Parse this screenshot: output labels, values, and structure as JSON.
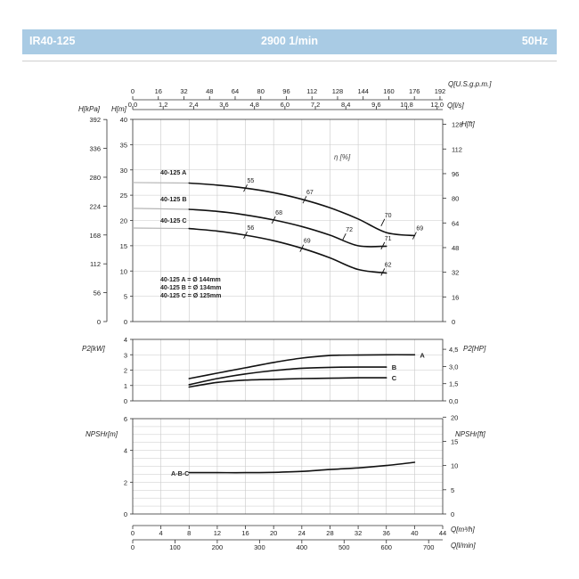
{
  "header": {
    "model": "IR40-125",
    "speed": "2900 1/min",
    "frequency": "50Hz",
    "background_color": "#a9cbe4"
  },
  "chart_data": [
    {
      "type": "line",
      "id": "head",
      "axes": {
        "x_top_gpm": {
          "label": "Q[U.S.g.p.m.]",
          "ticks": [
            "0",
            "16",
            "32",
            "48",
            "64",
            "80",
            "96",
            "112",
            "128",
            "144",
            "160",
            "176",
            "192"
          ]
        },
        "x_top_ls": {
          "label": "Q[l/s]",
          "ticks": [
            "0,0",
            "1,2",
            "2,4",
            "3,6",
            "4,8",
            "6,0",
            "7,2",
            "8,4",
            "9,6",
            "10,8",
            "12,0"
          ]
        },
        "y_left_kpa": {
          "label": "H[kPa]",
          "ticks": [
            "0",
            "56",
            "112",
            "168",
            "224",
            "280",
            "336",
            "392"
          ]
        },
        "y_left_m": {
          "label": "H[m]",
          "ticks": [
            "0",
            "5",
            "10",
            "15",
            "20",
            "25",
            "30",
            "35",
            "40"
          ]
        },
        "y_right_ft": {
          "label": "H[ft]",
          "ticks": [
            "0",
            "16",
            "32",
            "48",
            "64",
            "80",
            "96",
            "112",
            "128"
          ]
        }
      },
      "eta_label": "η [%]",
      "xlim_m3h": [
        0,
        44
      ],
      "ylim_m": [
        0,
        40
      ],
      "grid": true,
      "series": [
        {
          "name": "40-125 A",
          "x": [
            0,
            8,
            12,
            16,
            20,
            24,
            28,
            32,
            36,
            40
          ],
          "y": [
            27.5,
            27.4,
            27.0,
            26.4,
            25.5,
            24.2,
            22.5,
            20.3,
            17.6,
            17.0
          ],
          "flat_from": 0
        },
        {
          "name": "40-125 B",
          "x": [
            0,
            8,
            12,
            16,
            20,
            24,
            28,
            32,
            36
          ],
          "y": [
            22.4,
            22.2,
            21.8,
            21.1,
            20.1,
            18.8,
            17.1,
            15.0,
            14.9
          ],
          "flat_from": 0
        },
        {
          "name": "40-125 C",
          "x": [
            0,
            8,
            12,
            16,
            20,
            24,
            28,
            32,
            36
          ],
          "y": [
            18.5,
            18.4,
            17.9,
            17.1,
            16.0,
            14.5,
            12.6,
            10.3,
            9.6
          ],
          "flat_from": 0
        }
      ],
      "efficiency_marks": [
        {
          "series": "40-125 A",
          "x": 16,
          "y": 26.4,
          "label": "55"
        },
        {
          "series": "40-125 A",
          "x": 24.4,
          "y": 24.1,
          "label": "67"
        },
        {
          "series": "40-125 A",
          "x": 35.5,
          "y": 19.6,
          "label": "70"
        },
        {
          "series": "40-125 A",
          "x": 40.0,
          "y": 17.0,
          "label": "69"
        },
        {
          "series": "40-125 B",
          "x": 20.0,
          "y": 20.1,
          "label": "68"
        },
        {
          "series": "40-125 B",
          "x": 30.0,
          "y": 16.7,
          "label": "72"
        },
        {
          "series": "40-125 B",
          "x": 35.5,
          "y": 15.0,
          "label": "71"
        },
        {
          "series": "40-125 C",
          "x": 16.0,
          "y": 17.1,
          "label": "56"
        },
        {
          "series": "40-125 C",
          "x": 24.0,
          "y": 14.5,
          "label": "69"
        },
        {
          "series": "40-125 C",
          "x": 35.5,
          "y": 9.8,
          "label": "62"
        }
      ],
      "impeller_notes": [
        "40-125 A = Ø 144mm",
        "40-125 B = Ø 134mm",
        "40-125 C = Ø 125mm"
      ]
    },
    {
      "type": "line",
      "id": "power",
      "axes": {
        "y_left": {
          "label": "P2[kW]",
          "ticks": [
            "0",
            "1",
            "2",
            "3",
            "4"
          ]
        },
        "y_right": {
          "label": "P2[HP]",
          "ticks": [
            "0,0",
            "1,5",
            "3,0",
            "4,5"
          ]
        }
      },
      "ylim_kw": [
        0,
        4
      ],
      "series": [
        {
          "name": "A",
          "x": [
            8,
            12,
            16,
            20,
            24,
            28,
            32,
            36,
            40
          ],
          "y": [
            1.45,
            1.8,
            2.15,
            2.5,
            2.78,
            2.95,
            2.98,
            3.0,
            3.0
          ]
        },
        {
          "name": "B",
          "x": [
            8,
            12,
            16,
            20,
            24,
            28,
            32,
            36
          ],
          "y": [
            1.05,
            1.45,
            1.75,
            1.97,
            2.12,
            2.18,
            2.2,
            2.2
          ]
        },
        {
          "name": "C",
          "x": [
            8,
            12,
            16,
            20,
            24,
            28,
            32,
            36
          ],
          "y": [
            0.9,
            1.2,
            1.35,
            1.4,
            1.45,
            1.47,
            1.5,
            1.5
          ]
        }
      ]
    },
    {
      "type": "line",
      "id": "npsh",
      "axes": {
        "y_left": {
          "label": "NPSHr[m]",
          "ticks": [
            "0",
            "2",
            "4",
            "6"
          ]
        },
        "y_right": {
          "label": "NPSHr[ft]",
          "ticks": [
            "0",
            "5",
            "10",
            "15",
            "20"
          ]
        },
        "x_bottom_m3h": {
          "label": "Q[m³/h]",
          "ticks": [
            "0",
            "4",
            "8",
            "12",
            "16",
            "20",
            "24",
            "28",
            "32",
            "36",
            "40",
            "44"
          ]
        },
        "x_bottom_lmin": {
          "label": "Q[l/min]",
          "ticks": [
            "0",
            "100",
            "200",
            "300",
            "400",
            "500",
            "600",
            "700"
          ]
        }
      },
      "ylim_m": [
        0,
        6
      ],
      "series": [
        {
          "name": "A-B-C",
          "x": [
            8,
            12,
            16,
            20,
            24,
            28,
            32,
            36,
            40
          ],
          "y": [
            2.6,
            2.6,
            2.6,
            2.62,
            2.68,
            2.8,
            2.9,
            3.05,
            3.25
          ]
        }
      ]
    }
  ]
}
